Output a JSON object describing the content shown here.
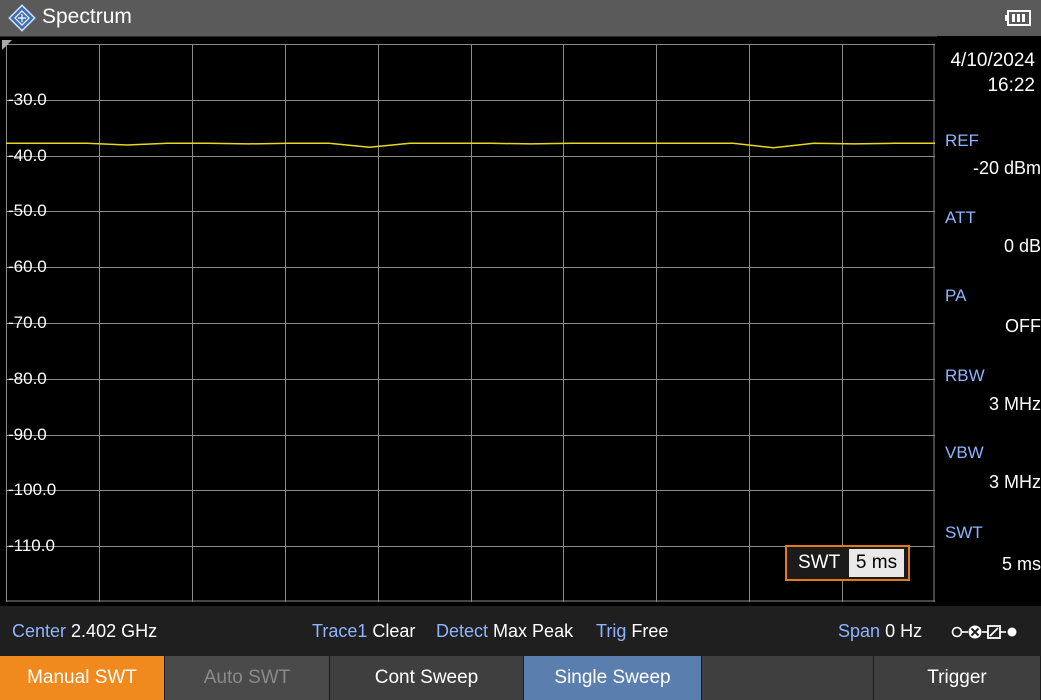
{
  "titlebar": {
    "title": "Spectrum",
    "logo_icon": "rohde-schwarz-diamond-icon",
    "battery_icon": "battery-icon"
  },
  "datetime": {
    "date": "4/10/2024",
    "time": "16:22"
  },
  "params": [
    {
      "label": "REF",
      "value": "-20 dBm"
    },
    {
      "label": "ATT",
      "value": "0 dB"
    },
    {
      "label": "PA",
      "value": "OFF"
    },
    {
      "label": "RBW",
      "value": "3 MHz"
    },
    {
      "label": "VBW",
      "value": "3 MHz"
    },
    {
      "label": "SWT",
      "value": "5 ms"
    }
  ],
  "graph": {
    "y_labels": [
      "-30.0",
      "-40.0",
      "-50.0",
      "-60.0",
      "-70.0",
      "-80.0",
      "-90.0",
      "-100.0",
      "-110.0"
    ],
    "trace_color": "#e6d81f",
    "grid_color": "#8a8a8a"
  },
  "chart_data": {
    "type": "line",
    "title": "",
    "xlabel": "",
    "ylabel": "",
    "ylim": [
      -120,
      -20
    ],
    "grid": true,
    "y_ticks": [
      -30,
      -40,
      -50,
      -60,
      -70,
      -80,
      -90,
      -100,
      -110
    ],
    "series": [
      {
        "values_level_dbm": [
          -37.8,
          -37.8,
          -37.8,
          -38.1,
          -37.8,
          -37.8,
          -37.9,
          -37.8,
          -37.8,
          -38.5,
          -37.8,
          -37.8,
          -37.8,
          -37.9,
          -37.8,
          -37.8,
          -37.8,
          -37.8,
          -37.8,
          -38.6,
          -37.8,
          -37.9,
          -37.8,
          -37.8
        ]
      }
    ]
  },
  "swt_entry": {
    "label": "SWT",
    "value": "5 ms"
  },
  "statusbar": {
    "center_key": "Center",
    "center_val": "2.402 GHz",
    "trace_key": "Trace1",
    "trace_val": "Clear",
    "detect_key": "Detect",
    "detect_val": "Max Peak",
    "trig_key": "Trig",
    "trig_val": "Free",
    "span_key": "Span",
    "span_val": "0 Hz",
    "status_icon": "connection-status-icon"
  },
  "softkeys": [
    {
      "label": "Manual SWT",
      "state": "active"
    },
    {
      "label": "Auto SWT",
      "state": "disabled"
    },
    {
      "label": "Cont Sweep",
      "state": "normal"
    },
    {
      "label": "Single Sweep",
      "state": "highlight"
    },
    {
      "label": "",
      "state": "empty"
    },
    {
      "label": "Trigger",
      "state": "normal"
    }
  ],
  "colors": {
    "accent_orange": "#f08a1e",
    "param_label_blue": "#8fb4ff",
    "softkey_blue": "#5a7fae"
  }
}
